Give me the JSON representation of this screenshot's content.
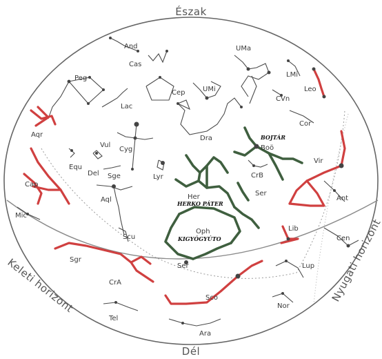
{
  "directions": {
    "north": "Észak",
    "south": "Dél",
    "east_horizon": "Keleti horizont",
    "west_horizon": "Nyugati horizont"
  },
  "constellations": {
    "And": "And",
    "Cas": "Cas",
    "UMa": "UMa",
    "Peg": "Peg",
    "Cep": "Cep",
    "UMi": "UMi",
    "LMi": "LMi",
    "Leo": "Leo",
    "Lac": "Lac",
    "CVn": "CVn",
    "Aqr": "Aqr",
    "Dra": "Dra",
    "Cor": "Cor",
    "Vul": "Vul",
    "Cyg": "Cyg",
    "Boo": "Boö",
    "Equ": "Equ",
    "Del": "Del",
    "Sge": "Sge",
    "Vir": "Vir",
    "Lyr": "Lyr",
    "CrB": "CrB",
    "Cap": "Cap",
    "Her": "Her",
    "Ser1": "Ser",
    "Aql": "Aql",
    "Ant": "Ant",
    "Mic": "Mic",
    "Oph": "Oph",
    "Lib": "Lib",
    "Scu": "Scu",
    "Cen": "Cen",
    "Sgr": "Sgr",
    "Ser2": "Ser",
    "Lup": "Lup",
    "CrA": "CrA",
    "Sco": "Sco",
    "Nor": "Nor",
    "Tel": "Tel",
    "Ara": "Ara"
  },
  "hungarian_names": {
    "bootes": "BOJTÁR",
    "hercules": "HERKO PÁTER",
    "ophiuchus": "KIGYÓGYÚTO"
  },
  "highlight_colors": {
    "red": "#d04040",
    "green": "#3f5f3f"
  }
}
